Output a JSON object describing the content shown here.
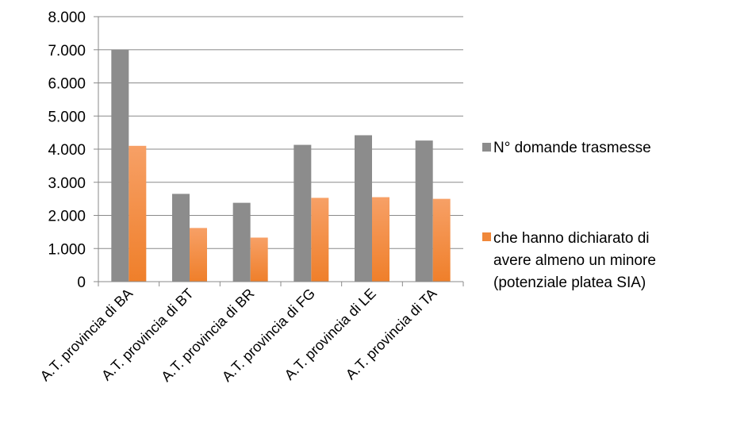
{
  "chart_data": {
    "type": "bar",
    "categories": [
      "A.T. provincia di BA",
      "A.T. provincia di BT",
      "A.T. provincia di BR",
      "A.T. provincia di FG",
      "A.T. provincia di LE",
      "A.T. provincia di TA"
    ],
    "series": [
      {
        "name": "N° domande trasmesse",
        "values": [
          7000,
          2650,
          2380,
          4130,
          4420,
          4260
        ],
        "color": "#8c8c8c"
      },
      {
        "name_lines": [
          "che hanno dichiarato di",
          "avere almeno un minore",
          "(potenziale platea SIA)"
        ],
        "values": [
          4100,
          1620,
          1330,
          2530,
          2550,
          2500
        ],
        "color": "#f0883a"
      }
    ],
    "ylim": [
      0,
      8000
    ],
    "y_ticks": [
      "0",
      "1.000",
      "2.000",
      "3.000",
      "4.000",
      "5.000",
      "6.000",
      "7.000",
      "8.000"
    ],
    "grid": true,
    "legend_position": "right"
  }
}
